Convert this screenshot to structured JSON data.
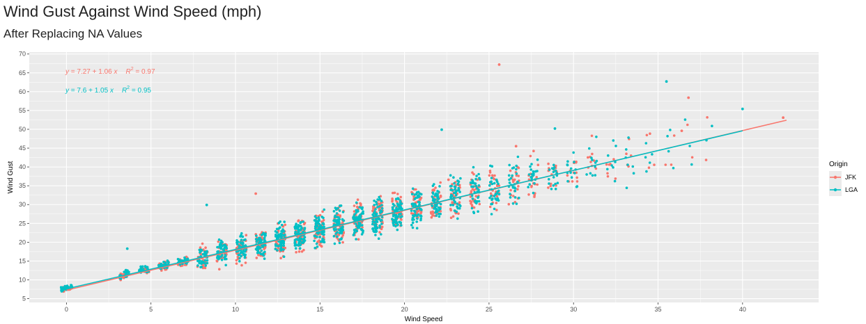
{
  "title": "Wind Gust Against Wind Speed (mph)",
  "subtitle": "After Replacing NA Values",
  "chart_data": {
    "type": "scatter",
    "title": "Wind Gust Against Wind Speed (mph)",
    "subtitle": "After Replacing NA Values",
    "xlabel": "Wind Speed",
    "ylabel": "Wind Gust",
    "xlim": [
      -2.2,
      44.5
    ],
    "ylim": [
      4,
      70.5
    ],
    "x_ticks": [
      0,
      5,
      10,
      15,
      20,
      25,
      30,
      35,
      40
    ],
    "y_ticks": [
      5,
      10,
      15,
      20,
      25,
      30,
      35,
      40,
      45,
      50,
      55,
      60,
      65,
      70
    ],
    "grid": true,
    "legend": {
      "title": "Origin",
      "placement": "right"
    },
    "series": [
      {
        "name": "JFK",
        "color": "#F8766D",
        "fit": {
          "intercept": 7.27,
          "slope": 1.06,
          "r2": 0.97,
          "x_range": [
            0,
            42.6
          ]
        },
        "equation": {
          "y": "y",
          "eq": " = 7.27 + 1.06 ",
          "x": "x",
          "r": "R",
          "sup": "2",
          "r2": " = 0.97"
        },
        "outliers": [
          [
            25.6,
            67.2
          ],
          [
            36.8,
            58.4
          ],
          [
            42.4,
            53.1
          ],
          [
            36.4,
            49.6
          ],
          [
            11.2,
            32.9
          ],
          [
            22.6,
            36.6
          ],
          [
            26.6,
            45.5
          ]
        ]
      },
      {
        "name": "LGA",
        "color": "#00BFC4",
        "fit": {
          "intercept": 7.6,
          "slope": 1.05,
          "r2": 0.95,
          "x_range": [
            0,
            40
          ]
        },
        "equation": {
          "y": "y",
          "eq": " = 7.6 + 1.05 ",
          "x": "x",
          "r": "R",
          "sup": "2",
          "r2": " = 0.95"
        },
        "outliers": [
          [
            35.5,
            62.7
          ],
          [
            40,
            55.4
          ],
          [
            22.2,
            49.9
          ],
          [
            8.3,
            29.9
          ],
          [
            3.6,
            18.3
          ],
          [
            28.9,
            50.2
          ]
        ]
      }
    ]
  }
}
